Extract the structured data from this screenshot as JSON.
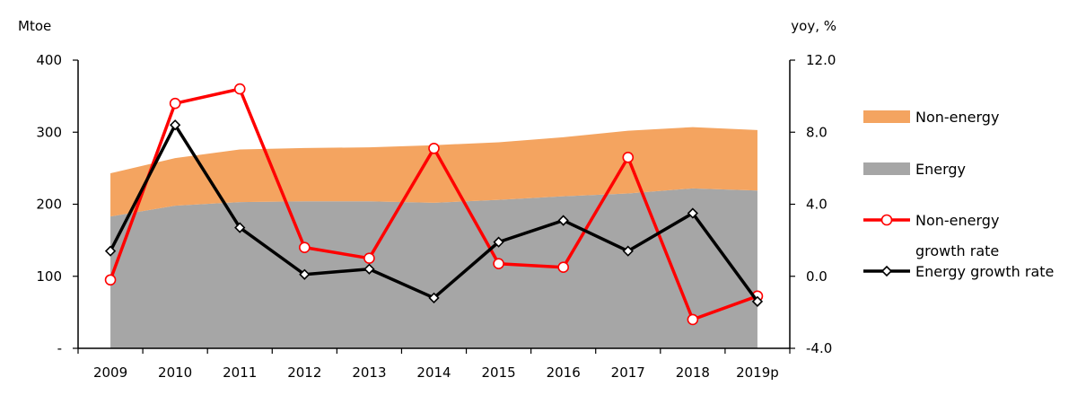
{
  "chart_data": {
    "type": "area+line",
    "categories": [
      "2009",
      "2010",
      "2011",
      "2012",
      "2013",
      "2014",
      "2015",
      "2016",
      "2017",
      "2018",
      "2019p"
    ],
    "left_axis": {
      "label": "Mtoe",
      "ylim": [
        0,
        400
      ],
      "ticks": [
        0,
        100,
        200,
        300,
        400
      ],
      "tick_labels": [
        "-",
        "100",
        "200",
        "300",
        "400"
      ]
    },
    "right_axis": {
      "label": "yoy, %",
      "ylim": [
        -4,
        12
      ],
      "ticks": [
        -4,
        0,
        4,
        8,
        12
      ],
      "tick_labels": [
        "-4.0",
        "0.0",
        "4.0",
        "8.0",
        "12.0"
      ]
    },
    "series": [
      {
        "name": "Energy",
        "kind": "area",
        "axis": "left",
        "color": "#a6a6a6",
        "values": [
          183,
          198,
          203,
          204,
          204,
          202,
          206,
          211,
          215,
          222,
          219
        ]
      },
      {
        "name": "Non-energy",
        "kind": "area-stacked",
        "axis": "left",
        "color": "#f4a460",
        "values": [
          60,
          66,
          73,
          74,
          75,
          80,
          80,
          82,
          87,
          85,
          84
        ]
      },
      {
        "name": "Non-energy growth rate",
        "kind": "line",
        "axis": "right",
        "color": "#ff0000",
        "marker": "circle",
        "values": [
          -0.2,
          9.6,
          10.4,
          1.6,
          1.0,
          7.1,
          0.7,
          0.5,
          6.6,
          -2.4,
          -1.1
        ]
      },
      {
        "name": "Energy growth rate",
        "kind": "line",
        "axis": "right",
        "color": "#000000",
        "marker": "diamond",
        "values": [
          1.4,
          8.4,
          2.7,
          0.1,
          0.4,
          -1.2,
          1.9,
          3.1,
          1.4,
          3.5,
          -1.4
        ]
      }
    ],
    "legend": {
      "placement": "right",
      "entries": [
        {
          "label": "Non-energy",
          "symbol": "area",
          "color": "#f4a460"
        },
        {
          "label": "Energy",
          "symbol": "area",
          "color": "#a6a6a6"
        },
        {
          "label": "Non-energy",
          "label_line2": "growth rate",
          "symbol": "line-circle",
          "color": "#ff0000"
        },
        {
          "label": "Energy growth rate",
          "symbol": "line-diamond",
          "color": "#000000"
        }
      ]
    },
    "grid": false
  }
}
